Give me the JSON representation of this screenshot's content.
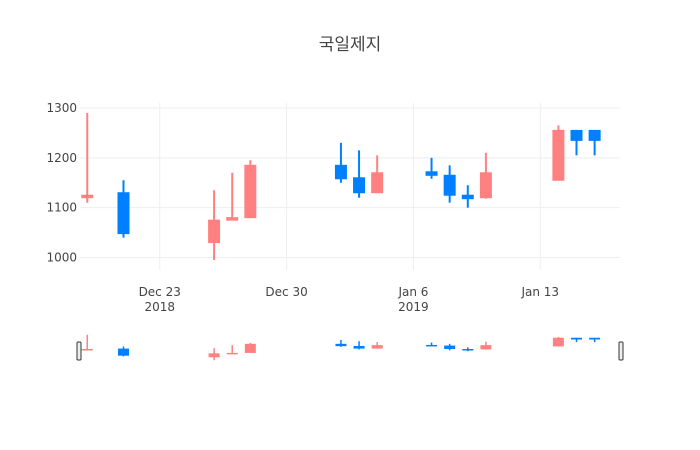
{
  "chart_data": {
    "type": "candlestick",
    "title": "국일제지",
    "colors": {
      "increasing": "#FF8080",
      "decreasing": "#0080FF",
      "grid": "#eeeeee"
    },
    "grid": true,
    "ylim": [
      975,
      1310
    ],
    "y_ticks": [
      1000,
      1100,
      1200,
      1300
    ],
    "x_range": [
      "2018-12-19",
      "2019-01-17"
    ],
    "x_ticks": [
      {
        "date": "2018-12-23",
        "label": "Dec 23",
        "sublabel": "2018"
      },
      {
        "date": "2018-12-30",
        "label": "Dec 30",
        "sublabel": ""
      },
      {
        "date": "2019-01-06",
        "label": "Jan 6",
        "sublabel": "2019"
      },
      {
        "date": "2019-01-13",
        "label": "Jan 13",
        "sublabel": ""
      }
    ],
    "candles": [
      {
        "date": "2018-12-19",
        "open": 1120,
        "high": 1290,
        "low": 1110,
        "close": 1125
      },
      {
        "date": "2018-12-21",
        "open": 1130,
        "high": 1155,
        "low": 1040,
        "close": 1048
      },
      {
        "date": "2018-12-26",
        "open": 1030,
        "high": 1135,
        "low": 995,
        "close": 1075
      },
      {
        "date": "2018-12-27",
        "open": 1075,
        "high": 1170,
        "low": 1075,
        "close": 1080
      },
      {
        "date": "2018-12-28",
        "open": 1080,
        "high": 1195,
        "low": 1080,
        "close": 1185
      },
      {
        "date": "2019-01-02",
        "open": 1185,
        "high": 1230,
        "low": 1150,
        "close": 1158
      },
      {
        "date": "2019-01-03",
        "open": 1160,
        "high": 1215,
        "low": 1120,
        "close": 1130
      },
      {
        "date": "2019-01-04",
        "open": 1130,
        "high": 1205,
        "low": 1130,
        "close": 1170
      },
      {
        "date": "2019-01-07",
        "open": 1172,
        "high": 1200,
        "low": 1158,
        "close": 1165
      },
      {
        "date": "2019-01-08",
        "open": 1165,
        "high": 1185,
        "low": 1110,
        "close": 1125
      },
      {
        "date": "2019-01-09",
        "open": 1125,
        "high": 1145,
        "low": 1100,
        "close": 1118
      },
      {
        "date": "2019-01-10",
        "open": 1120,
        "high": 1210,
        "low": 1118,
        "close": 1170
      },
      {
        "date": "2019-01-14",
        "open": 1155,
        "high": 1265,
        "low": 1155,
        "close": 1255
      },
      {
        "date": "2019-01-15",
        "open": 1255,
        "high": 1255,
        "low": 1205,
        "close": 1235
      },
      {
        "date": "2019-01-16",
        "open": 1255,
        "high": 1255,
        "low": 1205,
        "close": 1235
      }
    ]
  }
}
